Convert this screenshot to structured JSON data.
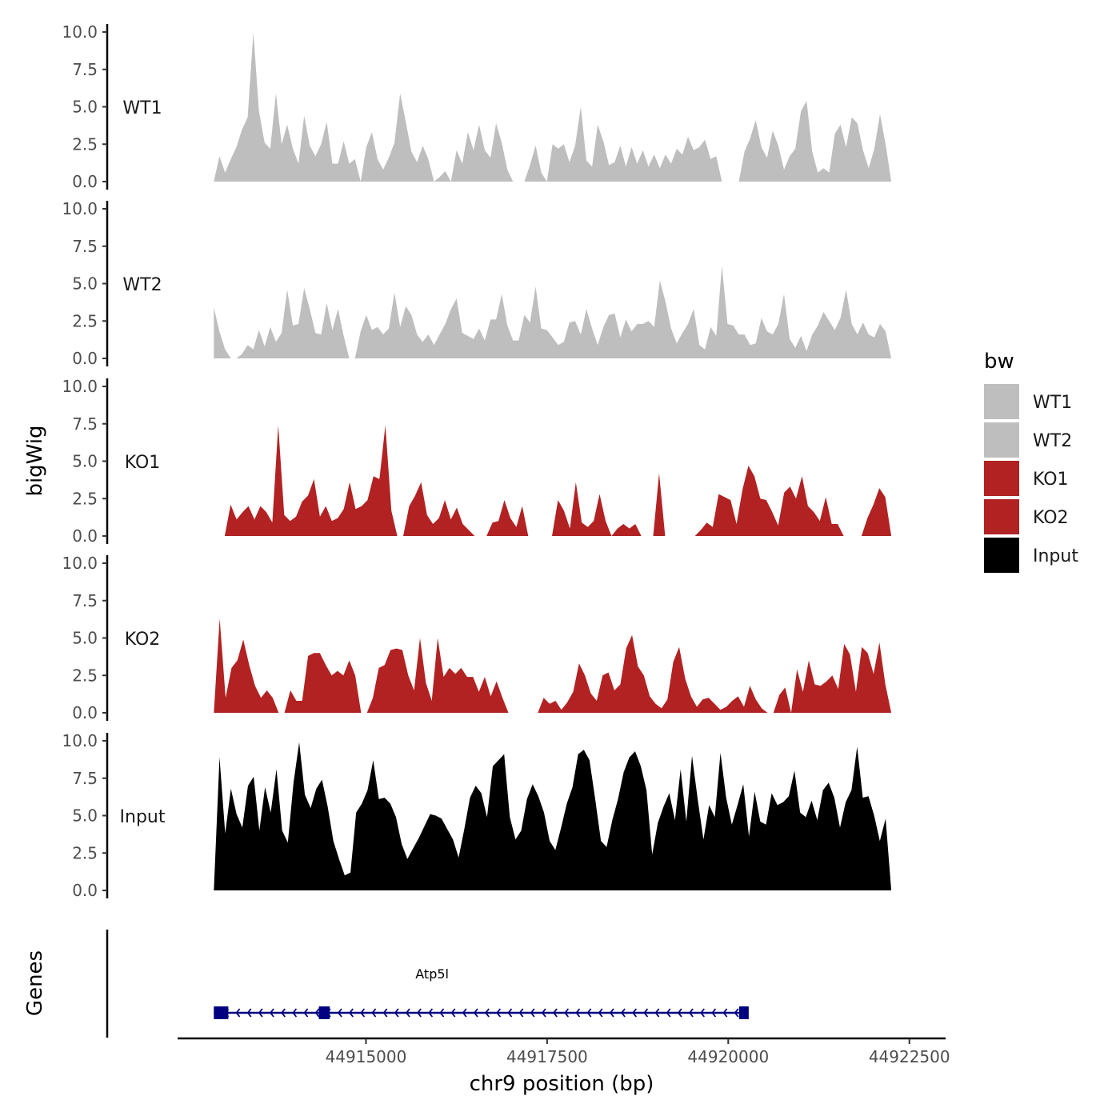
{
  "chart_data": {
    "type": "area",
    "title": "",
    "ylabel": "bigWig",
    "genes_label": "Genes",
    "xlabel": "chr9 position (bp)",
    "xlim": [
      44912400,
      44923000
    ],
    "x_ticks": [
      44915000,
      44917500,
      44920000,
      44922500
    ],
    "x_tick_labels": [
      "44915000",
      "44917500",
      "44920000",
      "44922500"
    ],
    "ylim": [
      0,
      10
    ],
    "y_ticks": [
      0,
      2.5,
      5,
      7.5,
      10
    ],
    "y_tick_labels": [
      "0.0",
      "2.5",
      "5.0",
      "7.5",
      "10.0"
    ],
    "legend": {
      "title": "bw",
      "position": "right",
      "entries": [
        {
          "label": "WT1",
          "color": "#bebebe"
        },
        {
          "label": "WT2",
          "color": "#bebebe"
        },
        {
          "label": "KO1",
          "color": "#b22222"
        },
        {
          "label": "KO2",
          "color": "#b22222"
        },
        {
          "label": "Input",
          "color": "#000000"
        }
      ]
    },
    "series": [
      {
        "name": "WT1",
        "color": "#bebebe",
        "x_start": 44912900,
        "x_end": 44922250,
        "values": [
          0,
          1.7,
          0.6,
          1.5,
          2.3,
          3.5,
          4.3,
          10.0,
          4.7,
          2.6,
          2.2,
          5.9,
          2.5,
          3.8,
          2.2,
          1.2,
          4.4,
          2.4,
          1.7,
          2.5,
          4.0,
          1.2,
          1.2,
          2.7,
          1.2,
          1.5,
          0,
          2.3,
          3.3,
          1.5,
          0.8,
          1.6,
          2.6,
          5.9,
          4.0,
          2.0,
          1.3,
          2.4,
          1.5,
          0,
          0.3,
          0.7,
          0,
          2.1,
          1.2,
          3.3,
          2.1,
          3.8,
          2.1,
          1.6,
          3.9,
          2.6,
          0.8,
          0,
          0,
          0,
          1.1,
          2.4,
          0.6,
          0,
          2.5,
          2.2,
          2.5,
          1.3,
          2.4,
          5.0,
          1.4,
          1.0,
          3.8,
          2.7,
          1.1,
          1.3,
          2.4,
          1.0,
          2.3,
          1.2,
          2.1,
          1.0,
          1.8,
          0.9,
          1.8,
          1.2,
          2.2,
          1.8,
          3.0,
          2.1,
          2.3,
          2.8,
          1.5,
          1.7,
          0,
          0,
          0,
          0,
          2.0,
          2.9,
          4.1,
          2.3,
          1.6,
          3.4,
          2.4,
          0.8,
          1.7,
          2.2,
          4.7,
          5.4,
          2.0,
          0.6,
          0.9,
          0.6,
          3.2,
          3.8,
          2.3,
          4.3,
          3.9,
          2.1,
          0.9,
          2.2,
          4.5,
          2.5,
          0
        ]
      },
      {
        "name": "WT2",
        "color": "#bebebe",
        "x_start": 44912900,
        "x_end": 44922250,
        "values": [
          3.4,
          1.8,
          0.6,
          0,
          0,
          0.3,
          0.9,
          0.6,
          1.9,
          0.8,
          2.1,
          1.1,
          1.7,
          4.6,
          2.2,
          2.3,
          4.7,
          3.3,
          1.7,
          1.6,
          3.7,
          1.9,
          3.3,
          1.5,
          0,
          0,
          1.8,
          2.9,
          1.9,
          2.1,
          1.6,
          2.0,
          4.4,
          2.1,
          3.5,
          2.9,
          1.6,
          1.1,
          1.6,
          0.9,
          1.6,
          2.3,
          3.3,
          4.0,
          1.7,
          1.5,
          1.3,
          2.0,
          1.2,
          2.6,
          2.6,
          4.3,
          2.2,
          1.2,
          1.2,
          2.9,
          2.4,
          4.8,
          2.0,
          1.9,
          1.4,
          0.9,
          1.1,
          2.4,
          2.5,
          1.6,
          3.3,
          2.0,
          0.9,
          2.1,
          2.9,
          3.0,
          1.4,
          2.6,
          1.8,
          2.3,
          2.3,
          2.5,
          2.1,
          5.2,
          3.8,
          2.0,
          1.0,
          1.7,
          2.3,
          3.3,
          0.9,
          0.6,
          2.1,
          1.5,
          6.2,
          2.3,
          2.2,
          1.6,
          1.6,
          0.9,
          1.0,
          2.7,
          1.8,
          1.6,
          2.3,
          4.3,
          1.3,
          0.7,
          1.5,
          0.5,
          1.6,
          2.2,
          3.1,
          2.5,
          1.9,
          2.7,
          4.6,
          2.3,
          1.6,
          2.4,
          1.6,
          1.4,
          2.3,
          1.8,
          0
        ]
      },
      {
        "name": "KO1",
        "color": "#b22222",
        "x_start": 44913050,
        "x_end": 44922250,
        "values": [
          0,
          2.1,
          1.1,
          1.6,
          2.0,
          1.1,
          2.0,
          1.6,
          0.9,
          7.4,
          1.4,
          1.0,
          1.3,
          2.3,
          2.7,
          3.8,
          1.3,
          2.0,
          1.0,
          1.2,
          1.8,
          3.6,
          1.8,
          2.0,
          2.4,
          4.0,
          3.8,
          7.4,
          1.7,
          0,
          0,
          2.0,
          2.7,
          3.6,
          1.4,
          0.8,
          1.2,
          2.4,
          1.1,
          1.9,
          0.8,
          0.4,
          0,
          0,
          0,
          0.9,
          1.0,
          2.4,
          1.2,
          0.6,
          2.0,
          0,
          0,
          0,
          0,
          0,
          2.4,
          1.7,
          0.5,
          3.6,
          0.9,
          0.6,
          1.0,
          2.8,
          1.0,
          0,
          0.5,
          0.8,
          0.5,
          0.8,
          0,
          0,
          0,
          4.2,
          0,
          0,
          0,
          0,
          0,
          0,
          0.4,
          0.9,
          0.6,
          2.8,
          2.6,
          2.4,
          0.8,
          3.1,
          4.7,
          4.0,
          2.5,
          2.4,
          1.6,
          0.7,
          2.9,
          3.3,
          2.5,
          4.0,
          2.0,
          1.6,
          1.0,
          2.6,
          0.8,
          0.8,
          0,
          0,
          0,
          0,
          1.2,
          2.1,
          3.2,
          2.6,
          0
        ]
      },
      {
        "name": "KO2",
        "color": "#b22222",
        "x_start": 44912900,
        "x_end": 44922250,
        "values": [
          0,
          6.3,
          1.0,
          3.0,
          3.5,
          4.9,
          3.2,
          1.8,
          1.0,
          1.5,
          1.0,
          0,
          0,
          1.5,
          0.8,
          0.8,
          3.8,
          4.0,
          4.0,
          3.2,
          2.5,
          2.8,
          2.5,
          3.5,
          2.5,
          0,
          0,
          1.0,
          3.0,
          3.2,
          4.2,
          4.3,
          4.2,
          2.5,
          1.5,
          5.0,
          2.0,
          0.8,
          5.0,
          2.4,
          3.0,
          2.6,
          3.0,
          2.4,
          2.4,
          1.4,
          2.4,
          1.1,
          2.1,
          1.0,
          0,
          0,
          0,
          0,
          0,
          0,
          1.0,
          0.6,
          0.8,
          0.2,
          0.7,
          1.4,
          3.3,
          2.5,
          1.3,
          0.8,
          2.5,
          2.7,
          1.5,
          1.9,
          4.3,
          5.2,
          3.1,
          2.5,
          1.1,
          0.6,
          0.3,
          0.9,
          3.4,
          4.4,
          2.3,
          1.1,
          0.4,
          0.9,
          1.0,
          0.6,
          0.2,
          0.4,
          0.8,
          1.1,
          0.4,
          1.8,
          0.9,
          0.3,
          0,
          0,
          1.2,
          1.7,
          0,
          2.9,
          1.4,
          3.5,
          1.9,
          1.8,
          2.1,
          2.5,
          1.6,
          4.6,
          3.9,
          1.4,
          4.4,
          4.0,
          2.6,
          4.7,
          1.9,
          0
        ]
      },
      {
        "name": "Input",
        "color": "#000000",
        "x_start": 44912900,
        "x_end": 44922250,
        "values": [
          0,
          8.9,
          3.8,
          6.8,
          5.1,
          4.2,
          7.0,
          7.6,
          4.0,
          6.9,
          5.2,
          8.1,
          4.0,
          3.2,
          7.2,
          9.9,
          6.4,
          5.5,
          6.8,
          7.4,
          5.6,
          3.3,
          2.1,
          1.0,
          1.2,
          5.2,
          5.8,
          6.7,
          8.7,
          6.1,
          6.2,
          5.8,
          4.9,
          3.1,
          2.1,
          2.8,
          3.5,
          4.3,
          5.1,
          5.0,
          4.8,
          4.1,
          3.4,
          2.2,
          4.1,
          6.2,
          7.0,
          6.5,
          4.9,
          8.3,
          8.7,
          9.1,
          4.9,
          3.4,
          4.0,
          6.1,
          7.1,
          6.3,
          5.2,
          3.3,
          2.7,
          4.2,
          5.8,
          6.9,
          9.1,
          9.4,
          8.7,
          6.1,
          3.3,
          2.9,
          4.7,
          6.1,
          7.9,
          8.9,
          9.3,
          8.3,
          6.7,
          2.4,
          4.5,
          5.6,
          6.5,
          4.7,
          8.1,
          4.6,
          9.0,
          6.1,
          3.4,
          5.7,
          4.9,
          9.2,
          6.2,
          4.4,
          5.7,
          7.1,
          3.6,
          6.6,
          4.6,
          4.4,
          6.5,
          5.7,
          5.9,
          6.3,
          8.0,
          5.2,
          4.9,
          6.0,
          4.7,
          6.7,
          7.2,
          6.2,
          4.2,
          5.9,
          6.7,
          9.6,
          6.2,
          6.3,
          5.0,
          3.3,
          4.8,
          0
        ]
      }
    ],
    "genes": [
      {
        "name": "Atp5l",
        "strand": "-",
        "start": 44912900,
        "end": 44920250,
        "color": "#000080",
        "exons": [
          [
            44912900,
            44913100
          ],
          [
            44914350,
            44914500
          ],
          [
            44920150,
            44920250
          ]
        ]
      }
    ]
  }
}
